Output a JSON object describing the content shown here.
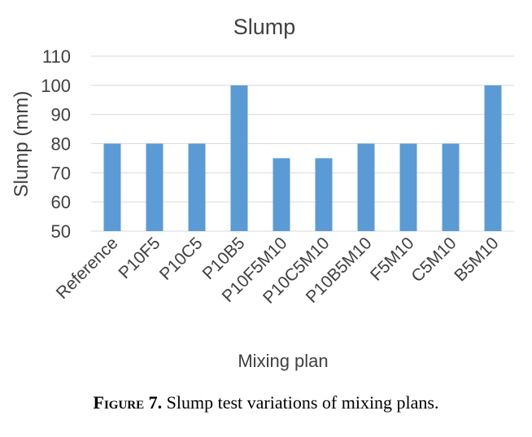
{
  "chart_data": {
    "type": "bar",
    "title": "Slump",
    "xlabel": "Mixing plan",
    "ylabel": "Slump (mm)",
    "categories": [
      "Reference",
      "P10F5",
      "P10C5",
      "P10B5",
      "P10F5M10",
      "P10C5M10",
      "P10B5M10",
      "F5M10",
      "C5M10",
      "B5M10"
    ],
    "values": [
      80,
      80,
      80,
      100,
      75,
      75,
      80,
      80,
      80,
      100
    ],
    "ylim": [
      50,
      110
    ],
    "yticks": [
      50,
      60,
      70,
      80,
      90,
      100,
      110
    ],
    "grid": true,
    "bar_color": "#5b9bd5"
  },
  "caption": {
    "label": "Figure 7.",
    "text": "Slump test variations of mixing plans."
  }
}
